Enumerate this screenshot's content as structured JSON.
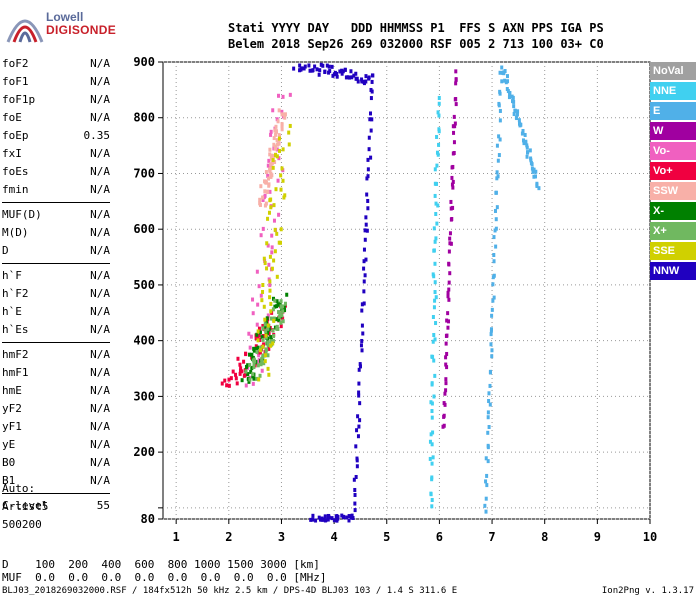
{
  "logo": {
    "line1": "Lowell",
    "line2": "DIGISONDE"
  },
  "header": {
    "line1": "Stati YYYY DAY   DDD HHMMSS P1  FFS S AXN PPS IGA PS",
    "line2": "Belem 2018 Sep26 269 032000 RSF 005 2 713 100 03+ C0"
  },
  "params": {
    "group1": [
      {
        "label": "foF2",
        "value": "N/A"
      },
      {
        "label": "foF1",
        "value": "N/A"
      },
      {
        "label": "foF1p",
        "value": "N/A"
      },
      {
        "label": "foE",
        "value": "N/A"
      },
      {
        "label": "foEp",
        "value": "0.35"
      },
      {
        "label": "fxI",
        "value": "N/A"
      },
      {
        "label": "foEs",
        "value": "N/A"
      },
      {
        "label": "fmin",
        "value": "N/A"
      }
    ],
    "group2": [
      {
        "label": "MUF(D)",
        "value": "N/A"
      },
      {
        "label": "M(D)",
        "value": "N/A"
      },
      {
        "label": "D",
        "value": "N/A"
      }
    ],
    "group3": [
      {
        "label": "h`F",
        "value": "N/A"
      },
      {
        "label": "h`F2",
        "value": "N/A"
      },
      {
        "label": "h`E",
        "value": "N/A"
      },
      {
        "label": "h`Es",
        "value": "N/A"
      }
    ],
    "group4": [
      {
        "label": "hmF2",
        "value": "N/A"
      },
      {
        "label": "hmF1",
        "value": "N/A"
      },
      {
        "label": "hmE",
        "value": "N/A"
      },
      {
        "label": "yF2",
        "value": "N/A"
      },
      {
        "label": "yF1",
        "value": "N/A"
      },
      {
        "label": "yE",
        "value": "N/A"
      },
      {
        "label": "B0",
        "value": "N/A"
      },
      {
        "label": "B1",
        "value": "N/A"
      }
    ],
    "group5": [
      {
        "label": "C-level",
        "value": "55"
      }
    ]
  },
  "autoscaling": {
    "line1": "Auto:",
    "line2": "Artist5",
    "line3": "500200"
  },
  "legend": [
    {
      "label": "NoVal",
      "color": "#a0a0a0"
    },
    {
      "label": "NNE",
      "color": "#40d0f0"
    },
    {
      "label": "E",
      "color": "#50b0e8"
    },
    {
      "label": "W",
      "color": "#a000a0"
    },
    {
      "label": "Vo-",
      "color": "#f060c0"
    },
    {
      "label": "Vo+",
      "color": "#f00040"
    },
    {
      "label": "SSW",
      "color": "#f8b0a8"
    },
    {
      "label": "X-",
      "color": "#008000"
    },
    {
      "label": "X+",
      "color": "#70b860"
    },
    {
      "label": "SSE",
      "color": "#d0d000"
    },
    {
      "label": "NNW",
      "color": "#2000c0"
    }
  ],
  "dmuf": {
    "line1": "D    100  200  400  600  800 1000 1500 3000 [km]",
    "line2": "MUF  0.0  0.0  0.0  0.0  0.0  0.0  0.0  0.0 [MHz]"
  },
  "footer": {
    "left": "BLJ03_2018269032000.RSF / 184fx512h 50 kHz 2.5 km / DPS-4D BLJ03 103 / 1.4 S 311.6 E",
    "right": "Ion2Png v. 1.3.17"
  },
  "chart_data": {
    "type": "scatter",
    "title": "",
    "xlabel": "",
    "ylabel": "",
    "xlim": [
      0.75,
      10
    ],
    "ylim": [
      80,
      900
    ],
    "x_ticks": [
      1,
      2,
      3,
      4,
      5,
      6,
      7,
      8,
      9,
      10
    ],
    "y_ticks": [
      80,
      100,
      200,
      300,
      400,
      500,
      600,
      700,
      800,
      900
    ],
    "y_tick_labels": [
      "80",
      "",
      "200",
      "300",
      "400",
      "500",
      "600",
      "700",
      "800",
      "900"
    ],
    "grid": "dotted",
    "x_units": "MHz",
    "y_units": "km",
    "series": [
      {
        "legend": "NNE",
        "trace": {
          "x": [
            5.8,
            5.95
          ],
          "y": [
            100,
            840
          ]
        },
        "spread": 0.07
      },
      {
        "legend": "E",
        "trace": {
          "x": [
            6.85,
            7.15,
            7.85
          ],
          "y": [
            100,
            900,
            680
          ]
        },
        "spread": 0.05
      },
      {
        "legend": "W",
        "trace": {
          "x": [
            6.05,
            6.3
          ],
          "y": [
            240,
            900
          ]
        },
        "spread": 0.04
      },
      {
        "legend": "Vo-",
        "trace": {
          "x": [
            2.4,
            3.0
          ],
          "y": [
            320,
            850
          ]
        },
        "spread": 0.35
      },
      {
        "legend": "Vo+",
        "trace": {
          "x": [
            2.0,
            3.0
          ],
          "y": [
            320,
            460
          ]
        },
        "spread": 0.4
      },
      {
        "legend": "SSW",
        "trace": {
          "x": [
            2.6,
            3.0
          ],
          "y": [
            650,
            820
          ]
        },
        "spread": 0.15
      },
      {
        "legend": "X-",
        "trace": {
          "x": [
            2.3,
            3.0
          ],
          "y": [
            330,
            480
          ]
        },
        "spread": 0.3
      },
      {
        "legend": "X+",
        "trace": {
          "x": [
            2.4,
            3.0
          ],
          "y": [
            340,
            470
          ]
        },
        "spread": 0.3
      },
      {
        "legend": "SSE",
        "trace": {
          "x": [
            2.6,
            3.0
          ],
          "y": [
            340,
            780
          ]
        },
        "spread": 0.3
      },
      {
        "legend": "NNW",
        "trace": {
          "x": [
            3.55,
            4.35,
            4.7,
            3.2
          ],
          "y": [
            80,
            80,
            870,
            900
          ]
        },
        "spread": 0.05
      }
    ]
  }
}
